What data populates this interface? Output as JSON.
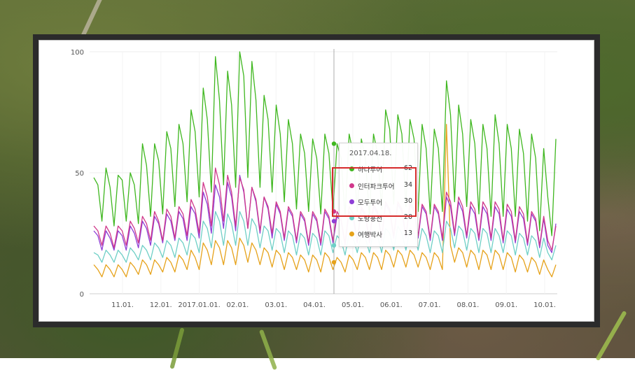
{
  "chart_data": {
    "type": "line",
    "ylim": [
      0,
      100
    ],
    "yticks": [
      "0",
      "50",
      "100"
    ],
    "x_tick_labels": [
      "11.01.",
      "12.01.",
      "2017.01.01.",
      "02.01.",
      "03.01.",
      "04.01.",
      "05.01.",
      "06.01.",
      "07.01.",
      "08.01.",
      "09.01.",
      "10.01."
    ],
    "grid": true,
    "series": [
      {
        "name": "하나투어",
        "color": "#3fb71f",
        "values": [
          48,
          45,
          30,
          52,
          44,
          28,
          49,
          47,
          30,
          50,
          45,
          29,
          62,
          53,
          32,
          62,
          55,
          33,
          67,
          60,
          36,
          70,
          62,
          38,
          76,
          67,
          40,
          85,
          72,
          42,
          98,
          80,
          45,
          92,
          78,
          44,
          100,
          90,
          48,
          96,
          80,
          44,
          82,
          72,
          42,
          78,
          66,
          38,
          72,
          62,
          35,
          66,
          58,
          34,
          64,
          56,
          33,
          66,
          58,
          34,
          62,
          56,
          32,
          66,
          58,
          34,
          64,
          56,
          32,
          66,
          58,
          35,
          76,
          68,
          37,
          74,
          66,
          36,
          72,
          64,
          34,
          70,
          60,
          33,
          68,
          60,
          34,
          88,
          74,
          38,
          78,
          66,
          36,
          72,
          62,
          33,
          70,
          60,
          32,
          74,
          62,
          32,
          70,
          60,
          32,
          68,
          58,
          30,
          66,
          56,
          26,
          60,
          40,
          24,
          64
        ]
      },
      {
        "name": "인터파크투어",
        "color": "#d0388b",
        "values": [
          28,
          26,
          20,
          28,
          25,
          19,
          28,
          26,
          20,
          30,
          27,
          21,
          32,
          29,
          22,
          34,
          30,
          22,
          35,
          32,
          23,
          36,
          33,
          24,
          39,
          35,
          25,
          46,
          40,
          28,
          52,
          45,
          30,
          49,
          42,
          28,
          48,
          43,
          27,
          44,
          39,
          26,
          40,
          36,
          25,
          38,
          34,
          23,
          36,
          33,
          22,
          34,
          31,
          21,
          34,
          31,
          21,
          35,
          32,
          22,
          34,
          31,
          21,
          36,
          33,
          22,
          36,
          33,
          22,
          37,
          34,
          23,
          38,
          35,
          24,
          38,
          35,
          24,
          38,
          35,
          24,
          37,
          34,
          23,
          37,
          34,
          23,
          42,
          38,
          25,
          40,
          36,
          24,
          38,
          35,
          23,
          38,
          35,
          23,
          38,
          35,
          22,
          37,
          34,
          22,
          36,
          33,
          21,
          34,
          31,
          20,
          32,
          22,
          18,
          28
        ]
      },
      {
        "name": "모두투어",
        "color": "#8e3fd6",
        "values": [
          26,
          24,
          18,
          26,
          23,
          18,
          26,
          24,
          18,
          28,
          25,
          19,
          30,
          27,
          20,
          32,
          29,
          21,
          33,
          30,
          22,
          34,
          31,
          22,
          36,
          33,
          23,
          42,
          37,
          25,
          45,
          40,
          27,
          46,
          40,
          26,
          49,
          42,
          27,
          44,
          38,
          25,
          40,
          35,
          23,
          37,
          33,
          22,
          35,
          32,
          21,
          33,
          30,
          20,
          33,
          30,
          20,
          34,
          31,
          21,
          32,
          30,
          20,
          34,
          31,
          21,
          35,
          32,
          21,
          36,
          33,
          22,
          37,
          34,
          23,
          37,
          34,
          23,
          37,
          34,
          23,
          36,
          33,
          22,
          36,
          33,
          22,
          40,
          36,
          24,
          38,
          34,
          23,
          36,
          33,
          22,
          36,
          33,
          22,
          36,
          33,
          21,
          35,
          32,
          21,
          34,
          31,
          20,
          33,
          30,
          19,
          31,
          20,
          17,
          29
        ]
      },
      {
        "name": "노랑풍선",
        "color": "#6ecfc6",
        "values": [
          17,
          16,
          13,
          18,
          16,
          13,
          18,
          16,
          13,
          19,
          17,
          14,
          20,
          18,
          14,
          21,
          19,
          15,
          22,
          20,
          15,
          23,
          21,
          16,
          25,
          23,
          17,
          30,
          27,
          19,
          34,
          30,
          20,
          33,
          29,
          20,
          34,
          30,
          20,
          31,
          28,
          19,
          28,
          26,
          18,
          27,
          25,
          17,
          26,
          24,
          16,
          25,
          23,
          16,
          25,
          23,
          16,
          26,
          24,
          17,
          24,
          22,
          16,
          25,
          23,
          17,
          25,
          23,
          17,
          26,
          24,
          17,
          27,
          25,
          18,
          28,
          25,
          18,
          27,
          25,
          18,
          27,
          24,
          17,
          26,
          24,
          17,
          30,
          27,
          19,
          28,
          26,
          18,
          27,
          25,
          17,
          27,
          25,
          17,
          27,
          24,
          17,
          26,
          24,
          16,
          25,
          23,
          16,
          24,
          22,
          15,
          23,
          17,
          14,
          20
        ]
      },
      {
        "name": "여행박사",
        "color": "#e6a21a",
        "values": [
          12,
          10,
          7,
          12,
          10,
          7,
          12,
          10,
          7,
          13,
          11,
          8,
          14,
          12,
          8,
          14,
          12,
          9,
          15,
          13,
          9,
          16,
          14,
          10,
          18,
          15,
          10,
          21,
          18,
          12,
          22,
          19,
          12,
          22,
          19,
          12,
          23,
          20,
          13,
          21,
          18,
          12,
          19,
          17,
          11,
          18,
          16,
          10,
          17,
          15,
          10,
          16,
          14,
          9,
          16,
          14,
          9,
          17,
          15,
          10,
          15,
          13,
          9,
          16,
          14,
          10,
          17,
          15,
          10,
          17,
          15,
          10,
          18,
          16,
          11,
          18,
          16,
          11,
          18,
          16,
          11,
          17,
          15,
          10,
          17,
          15,
          10,
          70,
          20,
          13,
          19,
          17,
          11,
          18,
          16,
          10,
          18,
          16,
          10,
          18,
          16,
          10,
          17,
          15,
          9,
          16,
          14,
          9,
          15,
          13,
          8,
          14,
          10,
          7,
          12
        ]
      }
    ],
    "tooltip": {
      "date": "2017.04.18.",
      "entries": [
        {
          "name": "하나투어",
          "value": "62",
          "color": "#3fb71f"
        },
        {
          "name": "인터파크투어",
          "value": "34",
          "color": "#d0388b"
        },
        {
          "name": "모두투어",
          "value": "30",
          "color": "#8e3fd6"
        },
        {
          "name": "노랑풍선",
          "value": "20",
          "color": "#6ecfc6"
        },
        {
          "name": "여행박사",
          "value": "13",
          "color": "#e6a21a"
        }
      ]
    }
  }
}
